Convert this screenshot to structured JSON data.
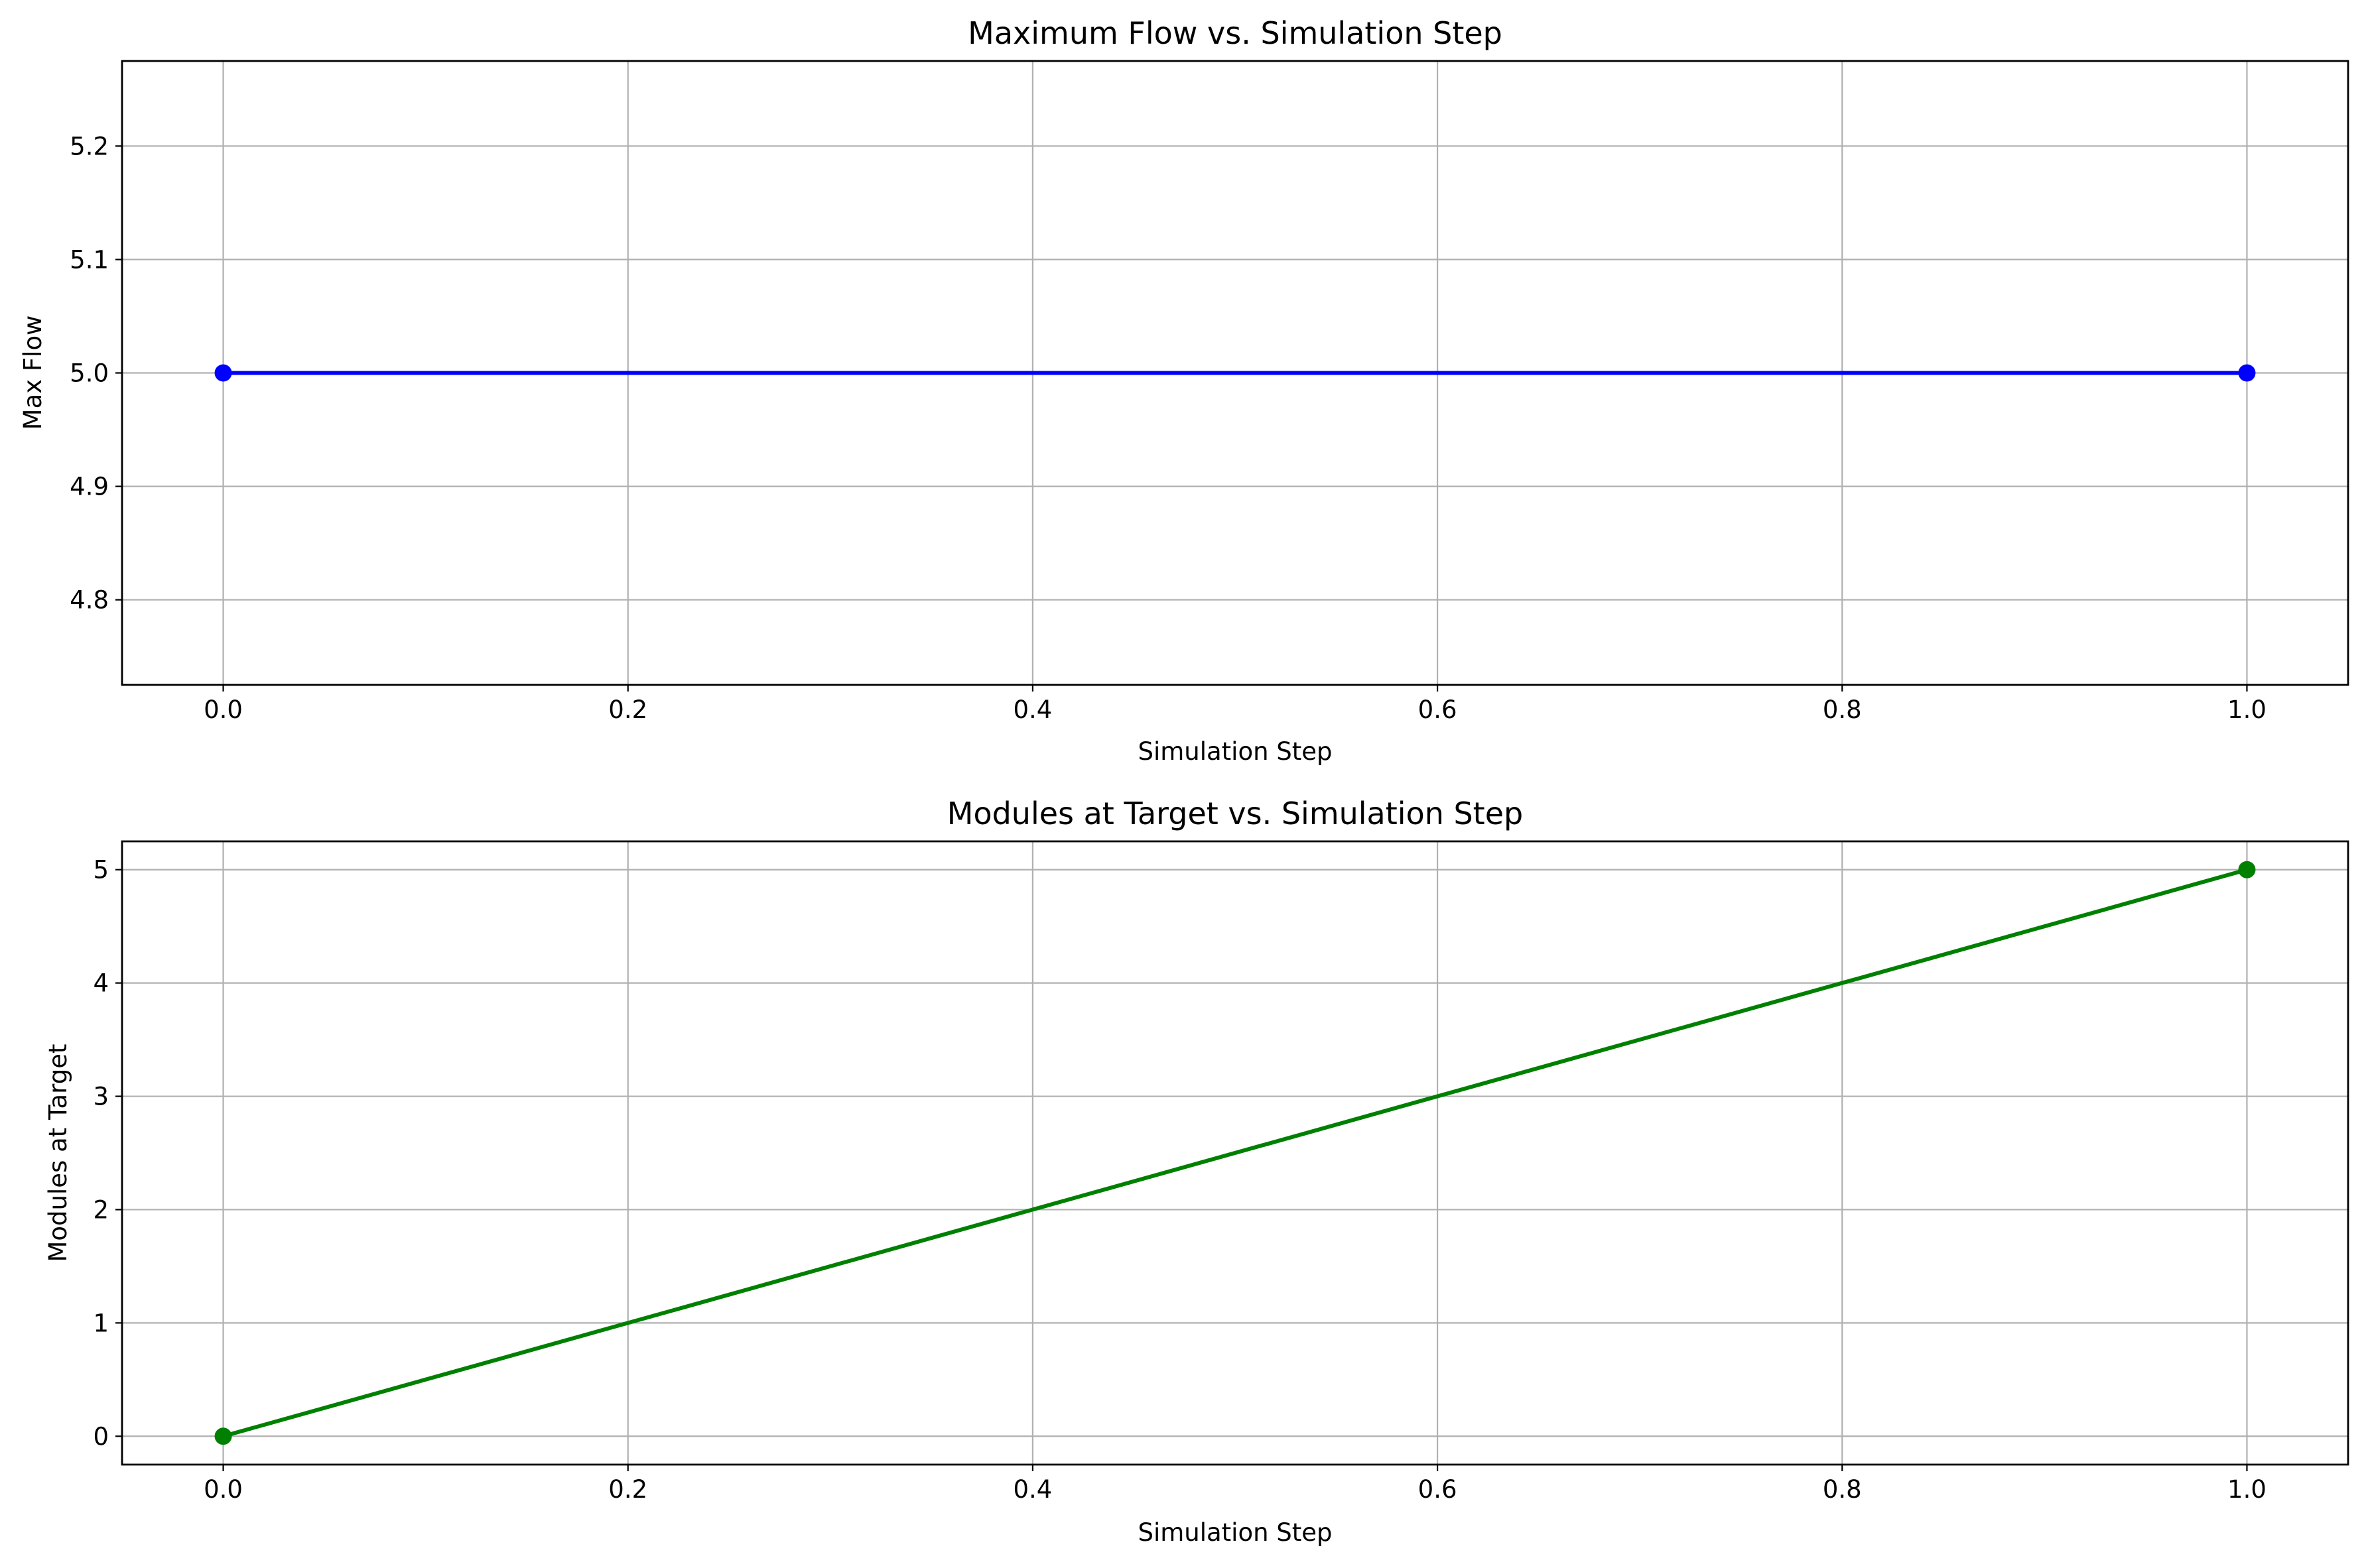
{
  "colors": {
    "series_1": "#0000ff",
    "series_2": "#008000",
    "grid": "#b0b0b0",
    "frame": "#000000"
  },
  "chart_data": [
    {
      "type": "line",
      "title": "Maximum Flow vs. Simulation Step",
      "xlabel": "Simulation Step",
      "ylabel": "Max Flow",
      "xlim": [
        -0.05,
        1.05
      ],
      "ylim": [
        4.725,
        5.275
      ],
      "x_ticks": [
        0.0,
        0.2,
        0.4,
        0.6,
        0.8,
        1.0
      ],
      "x_tick_labels": [
        "0.0",
        "0.2",
        "0.4",
        "0.6",
        "0.8",
        "1.0"
      ],
      "y_ticks": [
        4.8,
        4.9,
        5.0,
        5.1,
        5.2
      ],
      "y_tick_labels": [
        "4.8",
        "4.9",
        "5.0",
        "5.1",
        "5.2"
      ],
      "grid": true,
      "marker": "circle",
      "series": [
        {
          "color": "#0000ff",
          "x": [
            0,
            1
          ],
          "values": [
            5,
            5
          ]
        }
      ]
    },
    {
      "type": "line",
      "title": "Modules at Target vs. Simulation Step",
      "xlabel": "Simulation Step",
      "ylabel": "Modules at Target",
      "xlim": [
        -0.05,
        1.05
      ],
      "ylim": [
        -0.25,
        5.25
      ],
      "x_ticks": [
        0.0,
        0.2,
        0.4,
        0.6,
        0.8,
        1.0
      ],
      "x_tick_labels": [
        "0.0",
        "0.2",
        "0.4",
        "0.6",
        "0.8",
        "1.0"
      ],
      "y_ticks": [
        0,
        1,
        2,
        3,
        4,
        5
      ],
      "y_tick_labels": [
        "0",
        "1",
        "2",
        "3",
        "4",
        "5"
      ],
      "grid": true,
      "marker": "circle",
      "series": [
        {
          "color": "#008000",
          "x": [
            0,
            1
          ],
          "values": [
            0,
            5
          ]
        }
      ]
    }
  ]
}
